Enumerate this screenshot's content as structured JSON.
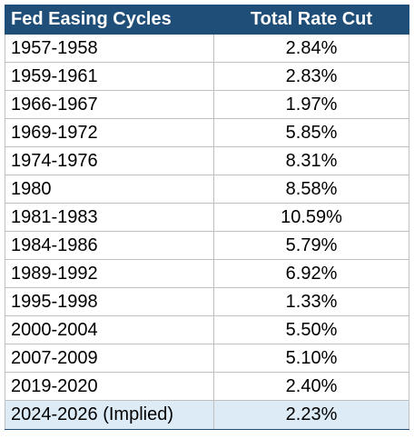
{
  "table": {
    "header": [
      "Fed Easing Cycles",
      "Total Rate Cut"
    ],
    "rows": [
      [
        "1957-1958",
        "2.84%"
      ],
      [
        "1959-1961",
        "2.83%"
      ],
      [
        "1966-1967",
        "1.97%"
      ],
      [
        "1969-1972",
        "5.85%"
      ],
      [
        "1974-1976",
        "8.31%"
      ],
      [
        "1980",
        "8.58%"
      ],
      [
        "1981-1983",
        "10.59%"
      ],
      [
        "1984-1986",
        "5.79%"
      ],
      [
        "1989-1992",
        "6.92%"
      ],
      [
        "1995-1998",
        "1.33%"
      ],
      [
        "2000-2004",
        "5.50%"
      ],
      [
        "2007-2009",
        "5.10%"
      ],
      [
        "2019-2020",
        "2.40%"
      ],
      [
        "2024-2026 (Implied)",
        "2.23%"
      ]
    ]
  }
}
